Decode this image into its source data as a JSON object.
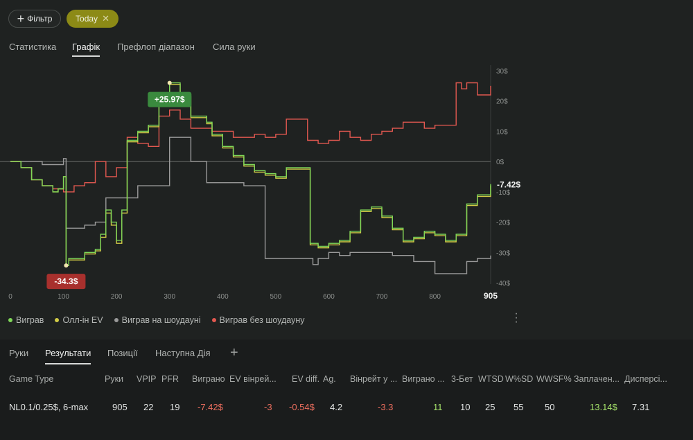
{
  "toolbar": {
    "filter_label": "Фільтр",
    "today_label": "Today"
  },
  "view_tabs": [
    {
      "label": "Статистика",
      "active": false
    },
    {
      "label": "Графік",
      "active": true
    },
    {
      "label": "Префлоп діапазон",
      "active": false
    },
    {
      "label": "Сила руки",
      "active": false
    }
  ],
  "chart_data": {
    "type": "line",
    "x_ticks": [
      "0",
      "100",
      "200",
      "300",
      "400",
      "500",
      "600",
      "700",
      "800",
      "905"
    ],
    "y_ticks": [
      "30$",
      "20$",
      "10$",
      "0$",
      "-10$",
      "-20$",
      "-30$",
      "-40$"
    ],
    "xlim": [
      0,
      905
    ],
    "ylim": [
      -40,
      30
    ],
    "annotations": {
      "max_label": "+25.97$",
      "min_label": "-34.3$",
      "end_label": "-7.42$"
    },
    "series": [
      {
        "name": "Виграв",
        "color": "#7fd858",
        "x": [
          0,
          20,
          40,
          60,
          80,
          90,
          100,
          105,
          110,
          120,
          140,
          160,
          170,
          180,
          190,
          200,
          210,
          220,
          240,
          260,
          280,
          300,
          320,
          340,
          360,
          370,
          380,
          400,
          420,
          440,
          460,
          480,
          500,
          520,
          540,
          560,
          565,
          580,
          600,
          620,
          640,
          660,
          680,
          700,
          720,
          740,
          760,
          780,
          800,
          820,
          840,
          860,
          880,
          905
        ],
        "y": [
          0,
          -2,
          -6,
          -8,
          -10,
          -9,
          -5,
          -34.3,
          -32,
          -32,
          -30,
          -29,
          -24,
          -16,
          -20,
          -26,
          -16,
          7,
          10,
          12,
          20,
          25.97,
          22,
          15,
          15,
          13,
          9,
          5,
          2,
          -1,
          -3,
          -4,
          -5,
          -2,
          -2,
          -2,
          -27,
          -28,
          -27,
          -26,
          -23,
          -16,
          -15,
          -18,
          -22,
          -26,
          -25,
          -23,
          -24,
          -26,
          -24,
          -14,
          -11,
          -7.42
        ]
      },
      {
        "name": "Олл-ін EV",
        "color": "#d2cc46",
        "x": [
          0,
          20,
          40,
          60,
          80,
          90,
          100,
          105,
          110,
          120,
          140,
          160,
          170,
          180,
          190,
          200,
          210,
          220,
          240,
          260,
          280,
          300,
          320,
          340,
          360,
          370,
          380,
          400,
          420,
          440,
          460,
          480,
          500,
          520,
          540,
          560,
          565,
          580,
          600,
          620,
          640,
          660,
          680,
          700,
          720,
          740,
          760,
          780,
          800,
          820,
          840,
          860,
          880,
          905
        ],
        "y": [
          0,
          -2,
          -6,
          -8,
          -10,
          -9,
          -5,
          -34.3,
          -32.5,
          -32.5,
          -30.5,
          -29.5,
          -25,
          -17,
          -21,
          -27,
          -17,
          6.5,
          9.5,
          11.5,
          19.5,
          25.5,
          21.5,
          14.5,
          14.5,
          12.5,
          8.5,
          4.5,
          1.5,
          -1.5,
          -3.5,
          -4.5,
          -5.5,
          -2.5,
          -2.5,
          -2.5,
          -27.5,
          -28.5,
          -27.5,
          -26.5,
          -23.5,
          -16.5,
          -15.5,
          -18.5,
          -22.5,
          -26.5,
          -25.5,
          -23.5,
          -24.5,
          -26.5,
          -24.5,
          -14.5,
          -11.5,
          -7.9
        ]
      },
      {
        "name": "Виграв на шоудауні",
        "color": "#9a9a9a",
        "x": [
          0,
          40,
          60,
          80,
          100,
          105,
          120,
          140,
          160,
          180,
          200,
          240,
          260,
          300,
          310,
          340,
          360,
          370,
          380,
          400,
          420,
          440,
          460,
          480,
          500,
          540,
          570,
          580,
          600,
          620,
          640,
          660,
          680,
          700,
          720,
          740,
          760,
          800,
          820,
          840,
          860,
          880,
          905
        ],
        "y": [
          0,
          0,
          -1,
          -1,
          1,
          -22,
          -22,
          -21,
          -20,
          -12,
          -12,
          -8,
          -8,
          8,
          8,
          0,
          0,
          -7,
          -7,
          -7,
          -7,
          -8,
          -8,
          -32,
          -32,
          -32,
          -34,
          -32,
          -30,
          -31,
          -30,
          -30,
          -30,
          -30,
          -31,
          -31,
          -33,
          -37,
          -37,
          -37,
          -33,
          -32,
          -31
        ]
      },
      {
        "name": "Виграв без шоудауну",
        "color": "#e25850",
        "x": [
          0,
          20,
          40,
          60,
          80,
          100,
          120,
          140,
          160,
          180,
          200,
          220,
          240,
          260,
          280,
          300,
          320,
          340,
          360,
          380,
          400,
          420,
          440,
          460,
          480,
          500,
          520,
          540,
          560,
          580,
          600,
          620,
          640,
          660,
          680,
          700,
          720,
          740,
          760,
          780,
          800,
          820,
          840,
          850,
          860,
          880,
          905
        ],
        "y": [
          0,
          -2,
          -6,
          -8,
          -9,
          -10,
          -8,
          -7,
          0,
          -5,
          -2,
          8,
          6,
          5,
          15,
          17,
          14,
          11,
          11,
          10,
          10,
          8,
          8,
          9,
          8,
          9,
          14,
          14,
          7,
          6,
          7,
          10,
          8,
          7,
          9,
          10,
          11,
          13,
          13,
          11,
          12,
          12,
          26,
          24,
          26,
          22,
          25
        ]
      }
    ]
  },
  "bottom_tabs": [
    {
      "label": "Руки",
      "active": false
    },
    {
      "label": "Результати",
      "active": true
    },
    {
      "label": "Позиції",
      "active": false
    },
    {
      "label": "Наступна Дія",
      "active": false
    }
  ],
  "table": {
    "headers": [
      "Game Type",
      "Руки",
      "VPIP",
      "PFR",
      "Виграно",
      "EV вінрей...",
      "EV diff.",
      "Ag.",
      "Вінрейт у ...",
      "Виграно ...",
      "3-Бет",
      "WTSD",
      "W%SD",
      "WWSF%",
      "Заплачен...",
      "Дисперсі..."
    ],
    "row": [
      "NL0.1/0.25$, 6-max",
      "905",
      "22",
      "19",
      "-7.42$",
      "-3",
      "-0.54$",
      "4.2",
      "-3.3",
      "11",
      "10",
      "25",
      "55",
      "50",
      "13.14$",
      "7.31"
    ]
  }
}
